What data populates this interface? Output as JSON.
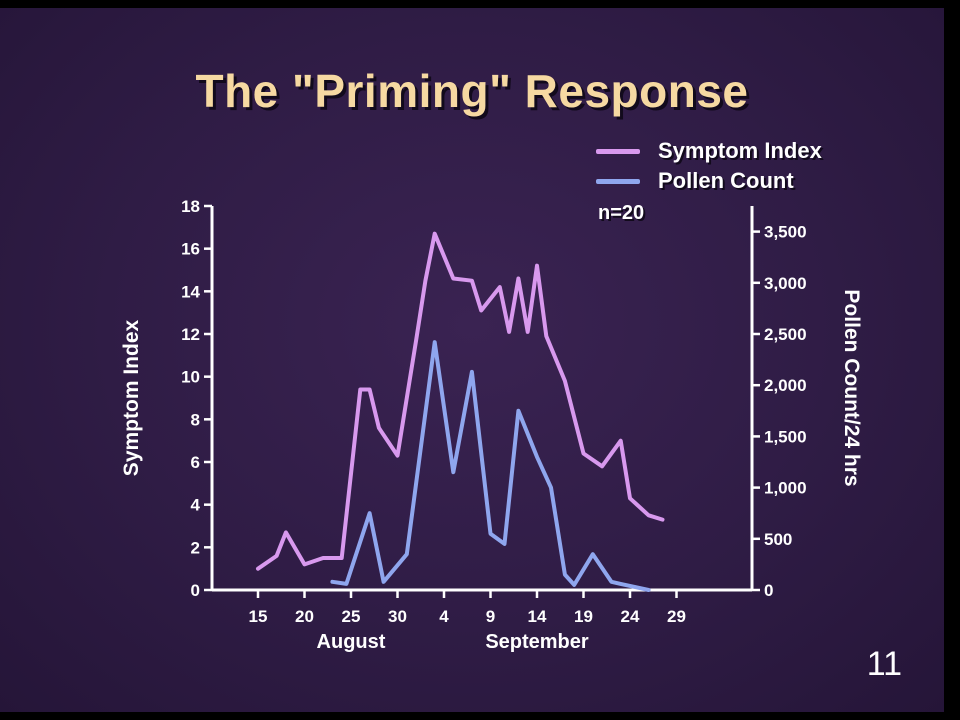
{
  "slide": {
    "title": "The \"Priming\" Response",
    "page_number": "11"
  },
  "colors": {
    "background": "#2f1c45",
    "title": "#f6d9a2",
    "symptom": "#d899ee",
    "pollen": "#8fa6ee",
    "axis": "#ffffff"
  },
  "chart_data": {
    "type": "line",
    "annotation": "n=20",
    "legend_placement": "top-right",
    "grid": false,
    "xlabel_groups": [
      {
        "label": "August",
        "center": 25
      },
      {
        "label": "September",
        "center": 45
      }
    ],
    "x_range": [
      12,
      61
    ],
    "x_ticks": [
      {
        "x": 15,
        "label": "15"
      },
      {
        "x": 20,
        "label": "20"
      },
      {
        "x": 25,
        "label": "25"
      },
      {
        "x": 30,
        "label": "30"
      },
      {
        "x": 35,
        "label": "4"
      },
      {
        "x": 40,
        "label": "9"
      },
      {
        "x": 45,
        "label": "14"
      },
      {
        "x": 50,
        "label": "19"
      },
      {
        "x": 55,
        "label": "24"
      },
      {
        "x": 60,
        "label": "29"
      }
    ],
    "y_left": {
      "label": "Symptom Index",
      "range": [
        0,
        18
      ],
      "ticks": [
        "0",
        "2",
        "4",
        "6",
        "8",
        "10",
        "12",
        "14",
        "16",
        "18"
      ]
    },
    "y_right": {
      "label": "Pollen Count/24 hrs",
      "range": [
        0,
        3750
      ],
      "ticks": [
        {
          "value": 0,
          "label": "0"
        },
        {
          "value": 500,
          "label": "500"
        },
        {
          "value": 1000,
          "label": "1,000"
        },
        {
          "value": 1500,
          "label": "1,500"
        },
        {
          "value": 2000,
          "label": "2,000"
        },
        {
          "value": 2500,
          "label": "2,500"
        },
        {
          "value": 3000,
          "label": "3,000"
        },
        {
          "value": 3500,
          "label": "3,500"
        }
      ]
    },
    "series": [
      {
        "name": "Symptom Index",
        "axis": "left",
        "color": "#d899ee",
        "x": [
          15,
          17,
          18,
          20,
          22,
          24,
          26,
          27,
          28,
          30,
          32,
          33,
          34,
          36,
          38,
          39,
          41,
          42,
          43,
          44,
          45,
          46,
          48,
          50,
          52,
          54,
          55,
          57,
          58.5
        ],
        "y": [
          1.0,
          1.6,
          2.7,
          1.2,
          1.5,
          1.5,
          9.4,
          9.4,
          7.6,
          6.3,
          11.7,
          14.5,
          16.7,
          14.6,
          14.5,
          13.1,
          14.2,
          12.1,
          14.6,
          12.1,
          15.2,
          11.9,
          9.8,
          6.4,
          5.8,
          7.0,
          4.3,
          3.5,
          3.3
        ]
      },
      {
        "name": "Pollen Count",
        "axis": "right",
        "color": "#8fa6ee",
        "x": [
          23,
          24.5,
          27,
          28.5,
          31,
          34,
          36,
          38,
          40,
          41.5,
          43,
          45,
          46.5,
          48,
          49,
          51,
          53,
          54,
          55.5,
          57
        ],
        "y": [
          80,
          60,
          750,
          80,
          350,
          2420,
          1150,
          2130,
          550,
          450,
          1750,
          1300,
          1000,
          150,
          50,
          350,
          80,
          60,
          30,
          0
        ]
      }
    ]
  }
}
